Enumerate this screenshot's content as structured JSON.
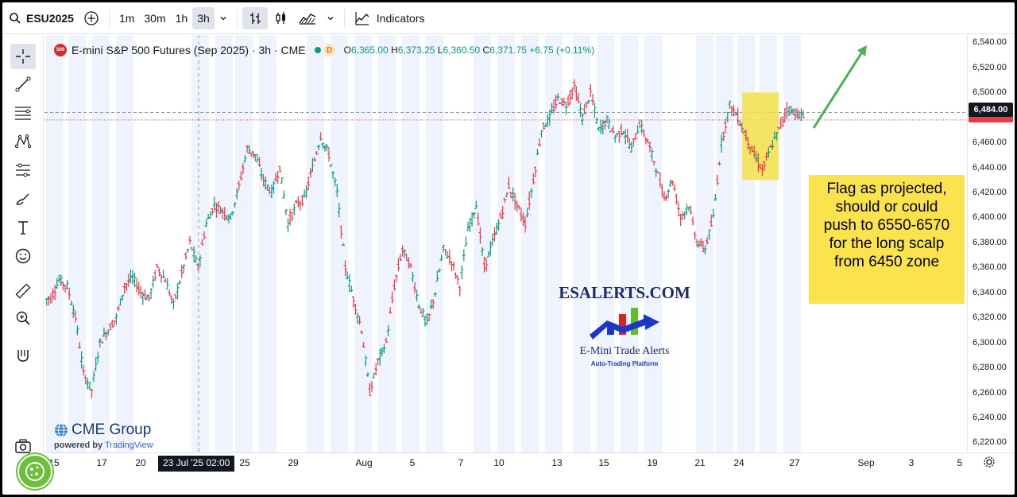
{
  "toolbar": {
    "symbol": "ESU2025",
    "intervals": [
      "1m",
      "30m",
      "1h",
      "3h"
    ],
    "active_interval": "3h",
    "indicators_label": "Indicators"
  },
  "legend": {
    "badge": "500",
    "title": "E-mini S&P 500 Futures (Sep 2025) · 3h · CME",
    "delay_badge": "D",
    "o_label": "O",
    "o": "6,365.00",
    "h_label": "H",
    "h": "6,373.25",
    "l_label": "L",
    "l": "6,360.50",
    "c_label": "C",
    "c": "6,371.75",
    "change": "+6.75 (+0.11%)"
  },
  "price_axis": {
    "ticks": [
      "6,540.00",
      "6,520.00",
      "6,500.00",
      "6,480.00",
      "6,460.00",
      "6,440.00",
      "6,420.00",
      "6,400.00",
      "6,380.00",
      "6,360.00",
      "6,340.00",
      "6,320.00",
      "6,300.00",
      "6,280.00",
      "6,260.00",
      "6,240.00",
      "6,220.00"
    ],
    "last_price": "6,484.00"
  },
  "time_axis": {
    "ticks": [
      "15",
      "17",
      "20",
      "25",
      "29",
      "Aug",
      "5",
      "7",
      "10",
      "13",
      "15",
      "19",
      "21",
      "24",
      "27",
      "Sep",
      "3",
      "5"
    ],
    "crosshair_label": "23 Jul '25   02:00"
  },
  "annotation": {
    "lines": [
      "Flag as projected,",
      "should or could",
      "push to 6550-6570",
      "for the long scalp",
      "from 6450 zone"
    ]
  },
  "brand": {
    "title": "ESALERTS.COM",
    "subtitle": "E-Mini Trade Alerts",
    "tagline": "Auto-Trading Platform"
  },
  "watermark": {
    "name": "CME Group",
    "powered_prefix": "powered by",
    "powered_brand": "TradingView"
  },
  "colors": {
    "up": "#089981",
    "down": "#f23645",
    "session_band": "#eef3fd",
    "highlight_box": "#f5e14a",
    "arrow": "#4caf50"
  },
  "chart_data": {
    "type": "candlestick",
    "title": "E-mini S&P 500 Futures (Sep 2025) · 3h · CME",
    "ylim": [
      6212,
      6546
    ],
    "y_ticks": [
      6540,
      6520,
      6500,
      6480,
      6460,
      6440,
      6420,
      6400,
      6380,
      6360,
      6340,
      6320,
      6300,
      6280,
      6260,
      6240,
      6220
    ],
    "x_ticks": [
      "15",
      "17",
      "20",
      "25",
      "29",
      "Aug",
      "5",
      "7",
      "10",
      "13",
      "15",
      "19",
      "21",
      "24",
      "27",
      "Sep",
      "3",
      "5"
    ],
    "last_price": 6484.0,
    "dashed_level": 6484,
    "close_level": 6478,
    "trend_path": [
      [
        6335,
        6350,
        6345,
        6320,
        6275,
        6262,
        6300,
        6310,
        6320,
        6345,
        6352,
        6340,
        6335,
        6360,
        6350,
        6330,
        6355,
        6380,
        6360,
        6395,
        6410,
        6405,
        6400,
        6425,
        6455,
        6450,
        6430,
        6420,
        6440,
        6395,
        6410,
        6415,
        6440,
        6465,
        6450,
        6420,
        6360,
        6335,
        6310,
        6260,
        6285,
        6300,
        6345,
        6375,
        6360,
        6330,
        6315,
        6340,
        6375,
        6365,
        6345,
        6390,
        6410,
        6360,
        6380,
        6400,
        6425,
        6410,
        6395,
        6430,
        6470,
        6480,
        6495,
        6490,
        6505,
        6480,
        6500,
        6470,
        6478,
        6465,
        6470,
        6455,
        6475,
        6460,
        6440,
        6415,
        6430,
        6400,
        6410,
        6380,
        6375,
        6400,
        6460,
        6490,
        6480,
        6465,
        6450,
        6438,
        6455,
        6470,
        6487,
        6484,
        6480
      ]
    ]
  }
}
